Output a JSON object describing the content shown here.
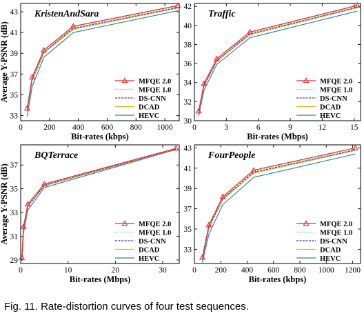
{
  "caption": "Fig. 11. Rate-distortion curves of four test sequences.",
  "colors": {
    "MFQE 2.0": "#e8282b",
    "MFQE 1.0": "#8fd48a",
    "DS-CNN": "#4a2f9c",
    "DCAD": "#f2b01e",
    "HEVC": "#2f7fc1"
  },
  "chart_data": [
    {
      "type": "line",
      "title": "KristenAndSara",
      "xlabel": "Bit-rates (kbps)",
      "ylabel": "Average Y-PSNR (dB)",
      "xlim": [
        0,
        1100
      ],
      "ylim": [
        32.5,
        43.8
      ],
      "xticks": [
        0,
        200,
        400,
        600,
        800,
        1000
      ],
      "yticks": [
        33,
        35,
        37,
        39,
        41,
        43
      ],
      "legend_position": "bottom-right",
      "series": [
        {
          "name": "MFQE 2.0",
          "x": [
            45,
            80,
            160,
            365,
            1090
          ],
          "y": [
            33.7,
            36.7,
            39.3,
            41.6,
            43.6
          ]
        },
        {
          "name": "MFQE 1.0",
          "x": [
            45,
            80,
            160,
            365,
            1090
          ],
          "y": [
            33.6,
            36.6,
            39.2,
            41.5,
            43.5
          ]
        },
        {
          "name": "DS-CNN",
          "x": [
            45,
            80,
            160,
            365,
            1090
          ],
          "y": [
            33.5,
            36.5,
            39.1,
            41.4,
            43.4
          ]
        },
        {
          "name": "DCAD",
          "x": [
            45,
            80,
            160,
            365,
            1090
          ],
          "y": [
            33.4,
            36.4,
            39.0,
            41.3,
            43.35
          ]
        },
        {
          "name": "HEVC",
          "x": [
            45,
            80,
            160,
            365,
            1090
          ],
          "y": [
            32.9,
            35.8,
            38.6,
            41.0,
            43.1
          ]
        }
      ]
    },
    {
      "type": "line",
      "title": "Traffic",
      "xlabel": "Bit-rates (Mbps)",
      "ylabel": "",
      "xlim": [
        0,
        15.6
      ],
      "ylim": [
        30,
        42.3
      ],
      "xticks": [
        0,
        3,
        6,
        9,
        12,
        15
      ],
      "yticks": [
        30,
        32,
        34,
        36,
        38,
        40,
        42
      ],
      "legend_position": "bottom-right",
      "series": [
        {
          "name": "MFQE 2.0",
          "x": [
            0.4,
            0.9,
            2.1,
            5.2,
            15.3
          ],
          "y": [
            31.0,
            33.9,
            36.5,
            39.3,
            42.1
          ]
        },
        {
          "name": "MFQE 1.0",
          "x": [
            0.4,
            0.9,
            2.1,
            5.2,
            15.3
          ],
          "y": [
            30.9,
            33.8,
            36.4,
            39.2,
            42.0
          ]
        },
        {
          "name": "DS-CNN",
          "x": [
            0.4,
            0.9,
            2.1,
            5.2,
            15.3
          ],
          "y": [
            30.85,
            33.7,
            36.3,
            39.1,
            41.9
          ]
        },
        {
          "name": "DCAD",
          "x": [
            0.4,
            0.9,
            2.1,
            5.2,
            15.3
          ],
          "y": [
            30.8,
            33.6,
            36.25,
            39.0,
            41.85
          ]
        },
        {
          "name": "HEVC",
          "x": [
            0.4,
            0.9,
            2.1,
            5.2,
            15.3
          ],
          "y": [
            30.5,
            33.2,
            35.9,
            38.7,
            41.5
          ]
        }
      ]
    },
    {
      "type": "line",
      "title": "BQTerrace",
      "xlabel": "Bit-rates (Mbps)",
      "ylabel": "Average Y-PSNR (dB)",
      "xlim": [
        0,
        33.5
      ],
      "ylim": [
        28.7,
        38.7
      ],
      "xticks": [
        0,
        10,
        20,
        30
      ],
      "yticks": [
        29,
        31,
        33,
        35,
        37
      ],
      "legend_position": "bottom-right",
      "series": [
        {
          "name": "MFQE 2.0",
          "x": [
            0.25,
            0.6,
            1.5,
            5.0,
            32.8
          ],
          "y": [
            29.2,
            31.8,
            33.7,
            35.4,
            38.4
          ]
        },
        {
          "name": "MFQE 1.0",
          "x": [
            0.25,
            0.6,
            1.5,
            5.0,
            32.8
          ],
          "y": [
            29.15,
            31.7,
            33.6,
            35.35,
            38.38
          ]
        },
        {
          "name": "DS-CNN",
          "x": [
            0.25,
            0.6,
            1.5,
            5.0,
            32.8
          ],
          "y": [
            29.1,
            31.6,
            33.55,
            35.3,
            38.35
          ]
        },
        {
          "name": "DCAD",
          "x": [
            0.25,
            0.6,
            1.5,
            5.0,
            32.8
          ],
          "y": [
            29.05,
            31.5,
            33.5,
            35.25,
            38.33
          ]
        },
        {
          "name": "HEVC",
          "x": [
            0.25,
            0.6,
            1.5,
            5.0,
            32.8
          ],
          "y": [
            28.9,
            31.3,
            33.2,
            35.1,
            38.3
          ]
        }
      ]
    },
    {
      "type": "line",
      "title": "FourPeople",
      "xlabel": "Bit-rates (kbps)",
      "ylabel": "",
      "xlim": [
        0,
        1260
      ],
      "ylim": [
        31.6,
        43.3
      ],
      "xticks": [
        0,
        200,
        400,
        600,
        800,
        1000,
        1200
      ],
      "yticks": [
        33,
        35,
        37,
        39,
        41,
        43
      ],
      "legend_position": "bottom-right",
      "series": [
        {
          "name": "MFQE 2.0",
          "x": [
            60,
            110,
            215,
            450,
            1220
          ],
          "y": [
            32.2,
            35.4,
            38.2,
            40.8,
            43.0
          ]
        },
        {
          "name": "MFQE 1.0",
          "x": [
            60,
            110,
            215,
            450,
            1220
          ],
          "y": [
            32.1,
            35.3,
            38.1,
            40.7,
            42.9
          ]
        },
        {
          "name": "DS-CNN",
          "x": [
            60,
            110,
            215,
            450,
            1220
          ],
          "y": [
            32.0,
            35.2,
            38.0,
            40.6,
            42.8
          ]
        },
        {
          "name": "DCAD",
          "x": [
            60,
            110,
            215,
            450,
            1220
          ],
          "y": [
            31.95,
            35.1,
            37.9,
            40.5,
            42.75
          ]
        },
        {
          "name": "HEVC",
          "x": [
            60,
            110,
            215,
            450,
            1220
          ],
          "y": [
            31.7,
            34.5,
            37.4,
            40.1,
            42.4
          ]
        }
      ]
    }
  ]
}
